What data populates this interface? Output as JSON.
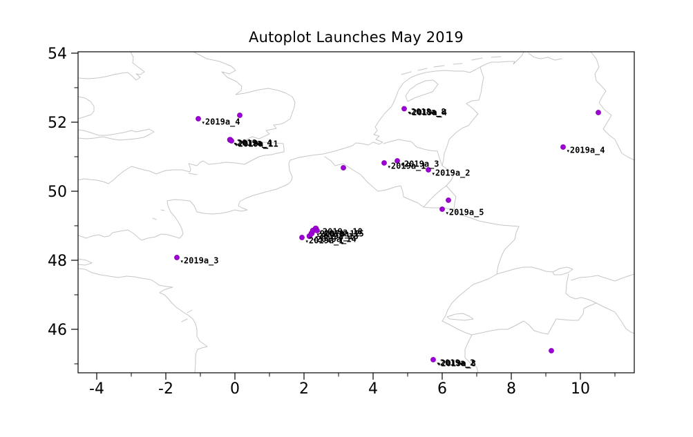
{
  "title": "Autoplot Launches May 2019",
  "colors": {
    "marker": "#9c00d4",
    "marker_edge": "#7d00aa",
    "map_line": "#c6c6c6",
    "axis": "#000000"
  },
  "label_marker": "▾",
  "chart_data": {
    "type": "scatter",
    "title": "Autoplot Launches May 2019",
    "xlabel": "",
    "ylabel": "",
    "xlim": [
      -4.54,
      11.56
    ],
    "ylim": [
      44.74,
      54.04
    ],
    "grid": false,
    "legend": null,
    "x_major_ticks": [
      -4,
      -2,
      0,
      2,
      4,
      6,
      8,
      10
    ],
    "x_minor_ticks": [
      -3,
      -1,
      1,
      3,
      5,
      7,
      9,
      11
    ],
    "y_major_ticks": [
      46,
      48,
      50,
      52,
      54
    ],
    "y_minor_ticks": [
      45,
      47,
      49,
      51,
      53
    ],
    "points": [
      {
        "lon": -1.06,
        "lat": 52.1,
        "labels": [
          "2019a_4"
        ]
      },
      {
        "lon": 0.14,
        "lat": 52.2,
        "labels": []
      },
      {
        "lon": -0.14,
        "lat": 51.49,
        "r": 4,
        "labels": [
          "2019a_4",
          "2018a_1"
        ]
      },
      {
        "lon": -0.1,
        "lat": 51.46,
        "labels": [
          "2019a_11"
        ]
      },
      {
        "lon": 4.9,
        "lat": 52.39,
        "labels": [
          "2018a_8",
          "2019a_4"
        ]
      },
      {
        "lon": 3.14,
        "lat": 50.68,
        "labels": []
      },
      {
        "lon": 4.32,
        "lat": 50.82,
        "labels": [
          "2019a_1"
        ]
      },
      {
        "lon": 4.7,
        "lat": 50.88,
        "labels": [
          "2019a_3"
        ]
      },
      {
        "lon": 5.6,
        "lat": 50.62,
        "labels": [
          "2019a_2"
        ]
      },
      {
        "lon": 6.18,
        "lat": 49.74,
        "labels": []
      },
      {
        "lon": 6.0,
        "lat": 49.48,
        "labels": [
          "2019a_5"
        ]
      },
      {
        "lon": 1.94,
        "lat": 48.66,
        "labels": [
          "2019a_1"
        ]
      },
      {
        "lon": 2.16,
        "lat": 48.7,
        "r": 4,
        "labels": [
          "2019a_14"
        ]
      },
      {
        "lon": 2.22,
        "lat": 48.78,
        "r": 4,
        "labels": [
          "2019a_13"
        ]
      },
      {
        "lon": 2.26,
        "lat": 48.86,
        "r": 4,
        "labels": [
          "2007a_12"
        ]
      },
      {
        "lon": 2.34,
        "lat": 48.92,
        "r": 4,
        "labels": [
          "2019a_18"
        ]
      },
      {
        "lon": 2.38,
        "lat": 48.86,
        "labels": [
          "2019a_15"
        ]
      },
      {
        "lon": -1.68,
        "lat": 48.08,
        "labels": [
          "2019a_3"
        ]
      },
      {
        "lon": 9.5,
        "lat": 51.28,
        "labels": [
          "2019a_4"
        ]
      },
      {
        "lon": 10.52,
        "lat": 52.28,
        "labels": []
      },
      {
        "lon": 5.74,
        "lat": 45.12,
        "labels": [
          "2019a_2",
          "2019a_8"
        ]
      },
      {
        "lon": 9.16,
        "lat": 45.38,
        "labels": []
      }
    ]
  }
}
